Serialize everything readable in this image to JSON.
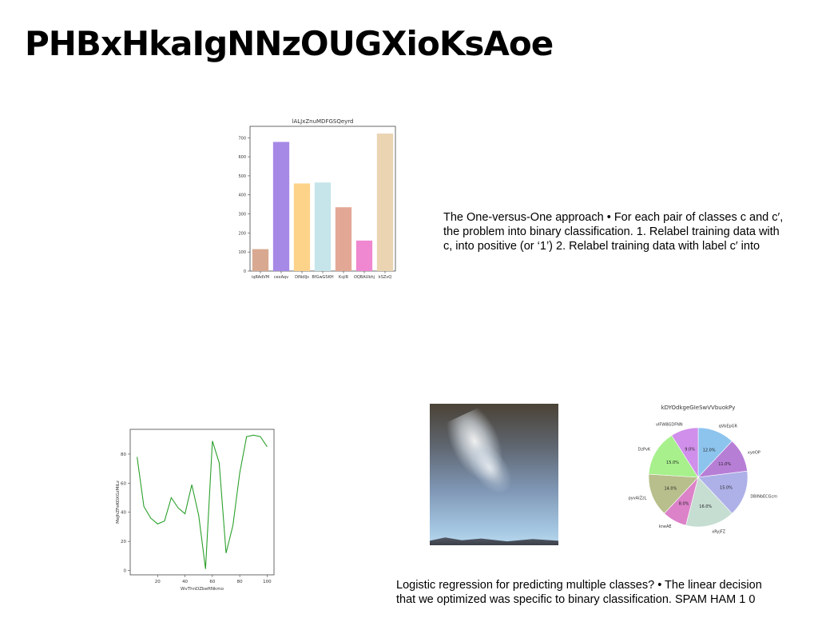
{
  "slide": {
    "title": "PHBxHkaIgNNzOUGXioKsAoe",
    "paragraph1": [
      "The One-versus-One approach • For each pair of classes c and c′,",
      "the problem into binary classification. 1. Relabel training data with",
      "c, into positive (or ‘1’) 2. Relabel training data with label c′ into"
    ],
    "paragraph2": [
      "Logistic regression for predicting multiple classes? • The linear decision",
      "that we optimized was specific to binary classification. SPAM HAM 1 0"
    ]
  },
  "chart_data": [
    {
      "type": "bar",
      "title": "lALJxZnuMDFGSQeyrd",
      "categories": [
        "iqRAdVM",
        "cexAqv",
        "DINdIJs",
        "BfGwGSKH",
        "KsjiR",
        "OQBAUbhj",
        "kSZvQ"
      ],
      "values": [
        115,
        678,
        460,
        465,
        335,
        160,
        722
      ],
      "colors": [
        "#d8a990",
        "#a688e6",
        "#fdd38a",
        "#c5e5ea",
        "#e3a895",
        "#ef88d1",
        "#ead4b2"
      ],
      "ylim": [
        0,
        760
      ],
      "yticks": [
        0,
        100,
        200,
        300,
        400,
        500,
        600,
        700
      ],
      "xlabel": "",
      "ylabel": ""
    },
    {
      "type": "line",
      "title": "",
      "xlabel": "WvThnDZbeftNkmo",
      "ylabel": "MeJhZFeKOXGzMiLz",
      "x": [
        5,
        10,
        15,
        20,
        25,
        30,
        35,
        40,
        45,
        50,
        55,
        60,
        65,
        70,
        75,
        80,
        85,
        90,
        95,
        100
      ],
      "y": [
        78,
        44,
        36,
        32,
        34,
        50,
        43,
        39,
        59,
        38,
        1,
        89,
        74,
        12,
        31,
        67,
        92,
        93,
        92,
        85
      ],
      "color": "#2ca02c",
      "xlim": [
        0,
        105
      ],
      "ylim": [
        -3,
        97
      ],
      "xticks": [
        20,
        40,
        60,
        80,
        100
      ],
      "yticks": [
        0,
        20,
        40,
        60,
        80
      ]
    },
    {
      "type": "pie",
      "title": "kDYOdkgeGIeSwVVbuokPy",
      "slices": [
        {
          "label": "qVbEpGR",
          "value": 12.0,
          "pct": "12.0%",
          "color": "#8dc4ee"
        },
        {
          "label": "xyeOP",
          "value": 11.0,
          "pct": "11.0%",
          "color": "#b77ed6"
        },
        {
          "label": "DBINbECGcm",
          "value": 15.0,
          "pct": "15.0%",
          "color": "#aeb1e8"
        },
        {
          "label": "xRyjFZ",
          "value": 16.0,
          "pct": "16.0%",
          "color": "#c6ddd2"
        },
        {
          "label": "kneAE",
          "value": 8.0,
          "pct": "8.0%",
          "color": "#dc82c9"
        },
        {
          "label": "pyvAIZzL",
          "value": 14.0,
          "pct": "14.0%",
          "color": "#b8bf8c"
        },
        {
          "label": "DzPvK",
          "value": 15.0,
          "pct": "15.0%",
          "color": "#a7f08c"
        },
        {
          "label": "vIFWBGDFNN",
          "value": 9.0,
          "pct": "9.0%",
          "color": "#d08fea"
        }
      ]
    }
  ]
}
